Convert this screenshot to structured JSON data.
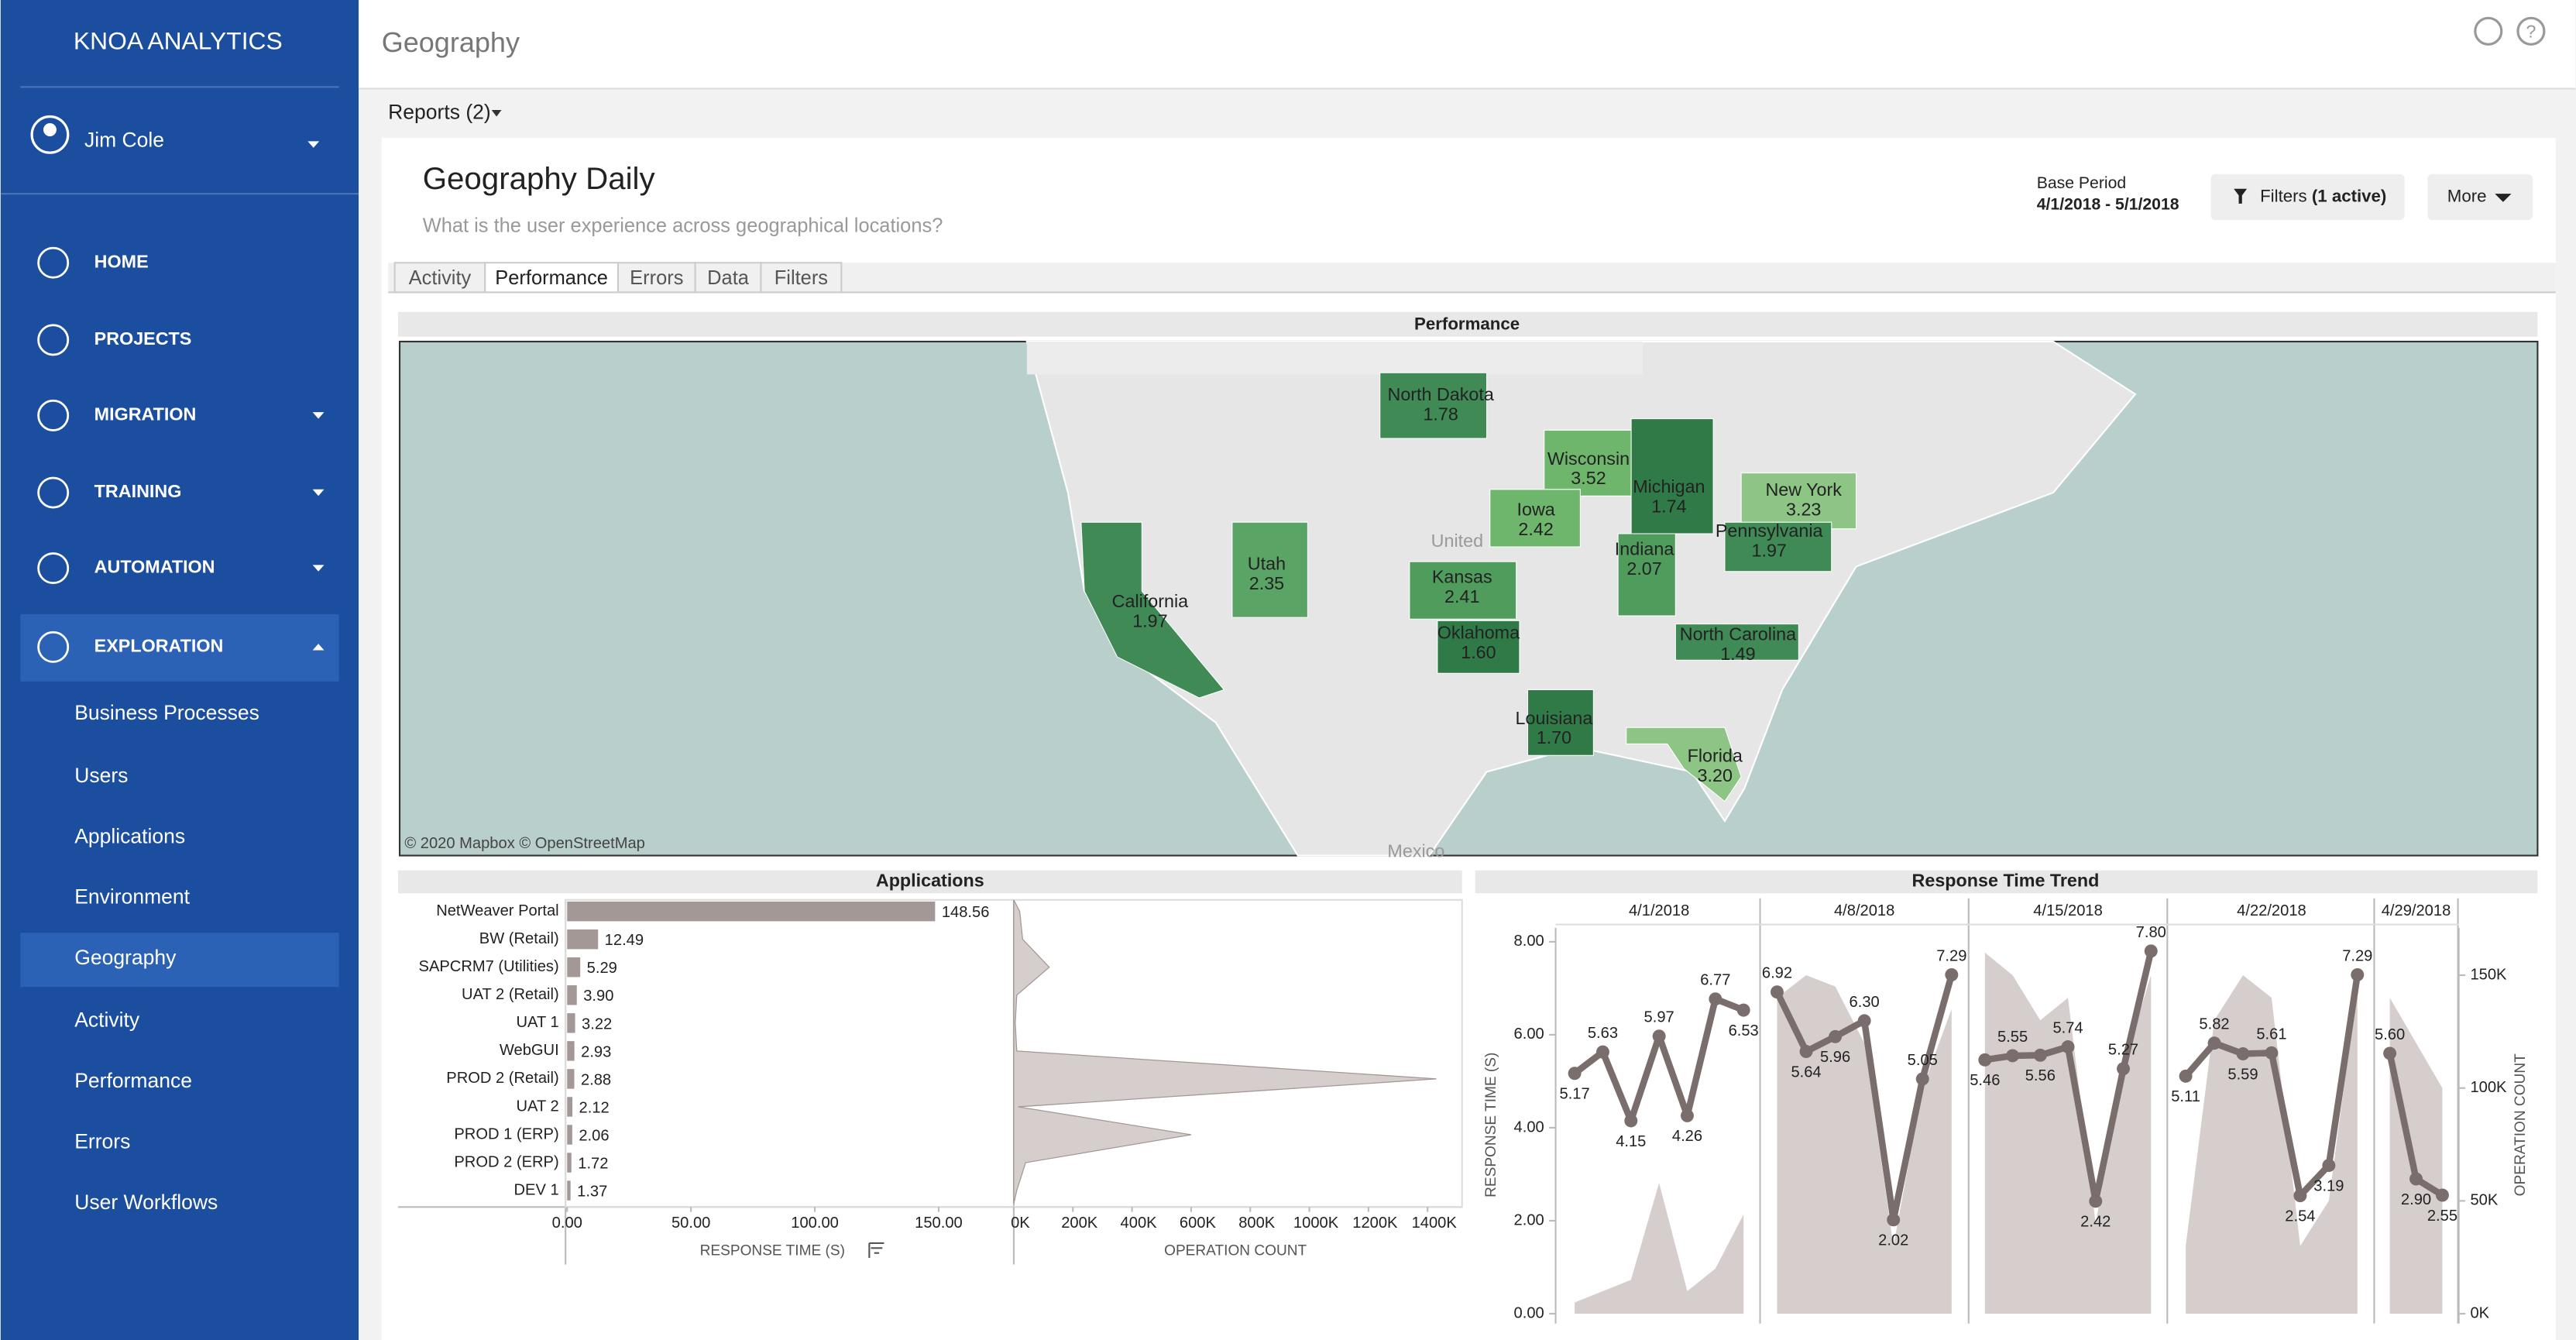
{
  "sidebar": {
    "brand": "KNOA ANALYTICS",
    "user": "Jim Cole",
    "nav": [
      "HOME",
      "PROJECTS",
      "MIGRATION",
      "TRAINING",
      "AUTOMATION",
      "EXPLORATION"
    ],
    "subnav": [
      "Business Processes",
      "Users",
      "Applications",
      "Environment",
      "Geography",
      "Activity",
      "Performance",
      "Errors",
      "User Workflows"
    ]
  },
  "header": {
    "title": "Geography",
    "reports": "Reports (2)"
  },
  "report": {
    "title": "Geography Daily",
    "subtitle": "What is the user experience across geographical locations?",
    "base_period_label": "Base Period",
    "base_period": "4/1/2018 - 5/1/2018",
    "filters": "Filters",
    "filters_active": "(1 active)",
    "more": "More",
    "tabs": [
      "Activity",
      "Performance",
      "Errors",
      "Data",
      "Filters"
    ]
  },
  "map": {
    "title": "Performance",
    "attribution": "© 2020 Mapbox © OpenStreetMap",
    "places": [
      "United",
      "Mexico"
    ],
    "states": [
      {
        "name": "North Dakota",
        "value": "1.78",
        "color": "#3f8a55"
      },
      {
        "name": "Wisconsin",
        "value": "3.52",
        "color": "#6fb66d"
      },
      {
        "name": "Iowa",
        "value": "2.42",
        "color": "#6fb66d"
      },
      {
        "name": "Michigan",
        "value": "1.74",
        "color": "#2f7a47"
      },
      {
        "name": "New York",
        "value": "3.23",
        "color": "#8cc584"
      },
      {
        "name": "Pennsylvania",
        "value": "1.97",
        "color": "#3f8a55"
      },
      {
        "name": "Indiana",
        "value": "2.07",
        "color": "#4f9c5c"
      },
      {
        "name": "Utah",
        "value": "2.35",
        "color": "#5aa565"
      },
      {
        "name": "California",
        "value": "1.97",
        "color": "#3f8a55"
      },
      {
        "name": "Kansas",
        "value": "2.41",
        "color": "#4f9c5c"
      },
      {
        "name": "Oklahoma",
        "value": "1.60",
        "color": "#2f7a47"
      },
      {
        "name": "North Carolina",
        "value": "1.49",
        "color": "#3f8a55"
      },
      {
        "name": "Louisiana",
        "value": "1.70",
        "color": "#2f7a47"
      },
      {
        "name": "Florida",
        "value": "3.20",
        "color": "#8cc584"
      }
    ]
  },
  "chart_data": [
    {
      "type": "bar",
      "title": "Applications",
      "categories": [
        "NetWeaver Portal",
        "BW (Retail)",
        "SAPCRM7 (Utilities)",
        "UAT 2 (Retail)",
        "UAT 1",
        "WebGUI",
        "PROD 2 (Retail)",
        "UAT 2",
        "PROD 1 (ERP)",
        "PROD 2 (ERP)",
        "DEV 1"
      ],
      "series": [
        {
          "name": "RESPONSE TIME (S)",
          "color": "#a39896",
          "values": [
            148.56,
            12.49,
            5.29,
            3.9,
            3.22,
            2.93,
            2.88,
            2.12,
            2.06,
            1.72,
            1.37
          ],
          "value_labels": [
            "148.56",
            "12.49",
            "5.29",
            "3.90",
            "3.22",
            "2.93",
            "2.88",
            "2.12",
            "2.06",
            "1.72",
            "1.37"
          ],
          "xlim": [
            0,
            179
          ],
          "xticks": [
            {
              "value": 0,
              "label": "0.00"
            },
            {
              "value": 50,
              "label": "50.00"
            },
            {
              "value": 100,
              "label": "100.00"
            },
            {
              "value": 150,
              "label": "150.00"
            }
          ]
        },
        {
          "name": "OPERATION COUNT",
          "color": "#d6cecc",
          "kind": "area",
          "values": [
            20000,
            30000,
            120000,
            10000,
            5000,
            10000,
            1430000,
            15000,
            600000,
            40000,
            10000
          ],
          "xlim": [
            0,
            1500000
          ],
          "xticks": [
            {
              "value": 0,
              "label": "0K"
            },
            {
              "value": 200000,
              "label": "200K"
            },
            {
              "value": 400000,
              "label": "400K"
            },
            {
              "value": 600000,
              "label": "600K"
            },
            {
              "value": 800000,
              "label": "800K"
            },
            {
              "value": 1000000,
              "label": "1000K"
            },
            {
              "value": 1200000,
              "label": "1200K"
            },
            {
              "value": 1400000,
              "label": "1400K"
            }
          ]
        }
      ]
    },
    {
      "type": "line",
      "title": "Response Time Trend",
      "categories": [
        "4/1/2018",
        "4/8/2018",
        "4/15/2018",
        "4/22/2018",
        "4/29/2018"
      ],
      "series": [
        {
          "name": "RESPONSE TIME (S)",
          "color": "#7a6e6c",
          "values": [
            [
              5.17,
              5.63,
              4.15,
              5.97,
              4.26,
              6.77,
              6.53
            ],
            [
              6.92,
              5.64,
              5.96,
              6.3,
              2.02,
              5.05,
              7.29
            ],
            [
              5.46,
              5.55,
              5.56,
              5.74,
              2.42,
              5.27,
              7.8
            ],
            [
              5.11,
              5.82,
              5.59,
              5.61,
              2.54,
              3.19,
              7.29
            ],
            [
              5.6,
              2.9,
              2.55
            ]
          ],
          "value_labels": [
            [
              "5.17",
              "5.63",
              "4.15",
              "5.97",
              "4.26",
              "6.77",
              "6.53"
            ],
            [
              "6.92",
              "5.64",
              "5.96",
              "6.30",
              "2.02",
              "5.05",
              "7.29"
            ],
            [
              "5.46",
              "5.55",
              "5.56",
              "5.74",
              "2.42",
              "5.27",
              "7.80"
            ],
            [
              "5.11",
              "5.82",
              "5.59",
              "5.61",
              "2.54",
              "3.19",
              "7.29"
            ],
            [
              "5.60",
              "2.90",
              "2.55"
            ]
          ]
        },
        {
          "name": "OPERATION COUNT",
          "color": "#d6cecc",
          "axis": "y2",
          "kind": "area",
          "values": [
            [
              5000,
              10000,
              15000,
              58000,
              10000,
              20000,
              44000
            ],
            [
              140000,
              150000,
              145000,
              120000,
              30000,
              100000,
              135000
            ],
            [
              160000,
              150000,
              130000,
              140000,
              40000,
              110000,
              150000
            ],
            [
              30000,
              130000,
              150000,
              140000,
              30000,
              50000,
              145000
            ],
            [
              140000,
              120000,
              100000
            ]
          ]
        }
      ],
      "ylim": [
        0,
        8.3
      ],
      "yticks": [
        {
          "value": 0,
          "label": "0.00"
        },
        {
          "value": 2,
          "label": "2.00"
        },
        {
          "value": 4,
          "label": "4.00"
        },
        {
          "value": 6,
          "label": "6.00"
        },
        {
          "value": 8,
          "label": "8.00"
        }
      ],
      "y2lim": [
        0,
        171000
      ],
      "y2ticks": [
        {
          "value": 0,
          "label": "0K"
        },
        {
          "value": 50000,
          "label": "50K"
        },
        {
          "value": 100000,
          "label": "100K"
        },
        {
          "value": 150000,
          "label": "150K"
        }
      ]
    }
  ]
}
